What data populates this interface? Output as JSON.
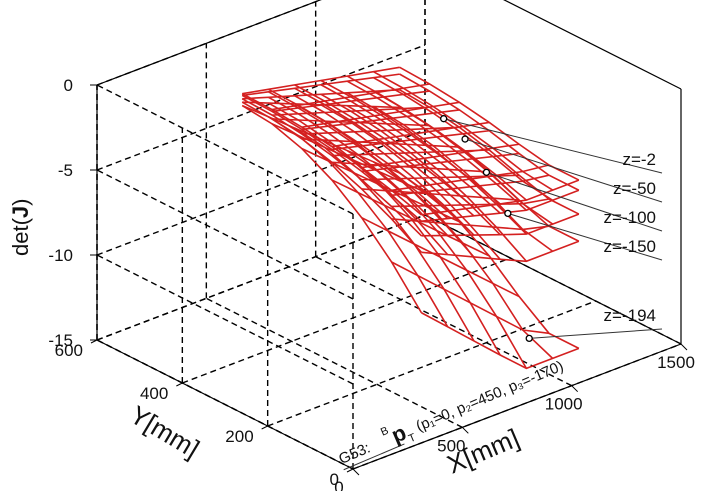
{
  "chart_data": {
    "type": "surface3d",
    "zlabel_prefix": "det(",
    "zlabel_bold": "J",
    "zlabel_suffix": ")",
    "xlabel": "X[mm]",
    "ylabel": "Y[mm]",
    "x_ticks": [
      "0",
      "500",
      "1000",
      "1500"
    ],
    "y_ticks": [
      "0",
      "200",
      "400",
      "600"
    ],
    "z_ticks": [
      "0",
      "-5",
      "-10",
      "-15"
    ],
    "xlim": [
      0,
      1500
    ],
    "ylim": [
      0,
      600
    ],
    "zlim": [
      -15,
      0
    ],
    "grid": true,
    "line_color": "#d42020",
    "series": [
      {
        "name": "z=-2",
        "det_min": -4.4,
        "det_max": -1.1
      },
      {
        "name": "z=-50",
        "det_min": -5.0,
        "det_max": -1.2
      },
      {
        "name": "z=-100",
        "det_min": -6.4,
        "det_max": -1.4
      },
      {
        "name": "z=-150",
        "det_min": -8.0,
        "det_max": -1.6
      },
      {
        "name": "z=-194",
        "det_min": -14.3,
        "det_max": -1.8
      }
    ],
    "annotation": {
      "frame": "G53:",
      "sup": "B",
      "symbol": "p",
      "sub": "T",
      "params": "(p₁=0, p₂=450, p₃=-170)"
    }
  }
}
